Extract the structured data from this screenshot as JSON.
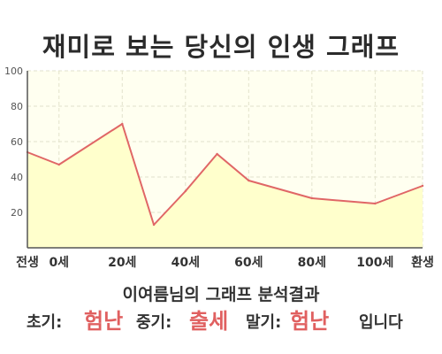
{
  "header": {
    "title": "재미로 보는 당신의 인생 그래프"
  },
  "chart_data": {
    "type": "area",
    "title": "재미로 보는 당신의 인생 그래프",
    "x": [
      -10,
      0,
      20,
      30,
      40,
      50,
      60,
      80,
      100,
      115
    ],
    "values": [
      54,
      47,
      70,
      13,
      32,
      53,
      38,
      28,
      25,
      35
    ],
    "xticks": [
      {
        "value": -10,
        "label": "전생"
      },
      {
        "value": 0,
        "label": "0세"
      },
      {
        "value": 20,
        "label": "20세"
      },
      {
        "value": 40,
        "label": "40세"
      },
      {
        "value": 60,
        "label": "60세"
      },
      {
        "value": 80,
        "label": "80세"
      },
      {
        "value": 100,
        "label": "100세"
      },
      {
        "value": 115,
        "label": "환생"
      }
    ],
    "yticks": [
      20,
      40,
      60,
      80,
      100
    ],
    "xlim": [
      -10,
      115
    ],
    "ylim": [
      0,
      100
    ],
    "grid": true,
    "colors": {
      "line": "#e06666",
      "fill": "#ffffcc",
      "plot_bg": "#fffff0",
      "grid": "#e2e2cc",
      "axis": "#555555"
    }
  },
  "result": {
    "heading": "이여름님의 그래프 분석결과",
    "early_label": "초기:",
    "early_value": "험난",
    "middle_label": "중기:",
    "middle_value": "출세",
    "late_label": "말기:",
    "late_value": "험난",
    "suffix": "입니다"
  }
}
